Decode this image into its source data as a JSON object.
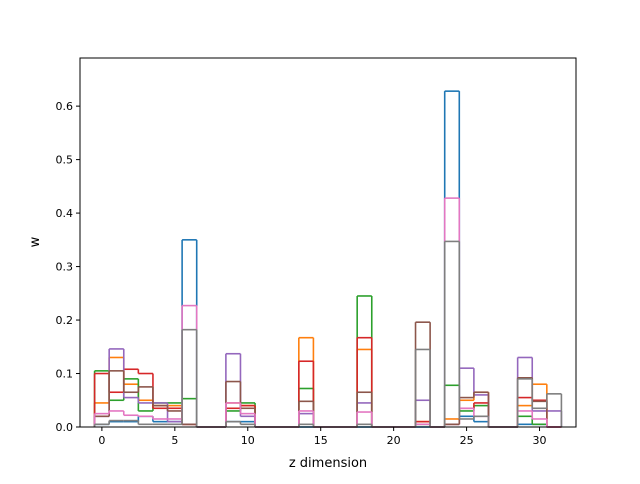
{
  "chart_data": {
    "type": "bar",
    "style": "step-histogram",
    "title": "",
    "xlabel": "z dimension",
    "ylabel": "w",
    "xlim": [
      -1.5,
      32.5
    ],
    "ylim": [
      0,
      0.69
    ],
    "xticks": [
      0,
      5,
      10,
      15,
      20,
      25,
      30
    ],
    "yticks": [
      0.0,
      0.1,
      0.2,
      0.3,
      0.4,
      0.5,
      0.6
    ],
    "xtick_labels": [
      "0",
      "5",
      "10",
      "15",
      "20",
      "25",
      "30"
    ],
    "ytick_labels": [
      "0.0",
      "0.1",
      "0.2",
      "0.3",
      "0.4",
      "0.5",
      "0.6"
    ],
    "grid": false,
    "legend": "none",
    "x": [
      0,
      1,
      2,
      3,
      4,
      5,
      6,
      7,
      8,
      9,
      10,
      11,
      12,
      13,
      14,
      15,
      16,
      17,
      18,
      19,
      20,
      21,
      22,
      23,
      24,
      25,
      26,
      27,
      28,
      29,
      30,
      31
    ],
    "series": [
      {
        "color": "#1f77b4",
        "values": [
          0.005,
          0.01,
          0.01,
          0.02,
          0.01,
          0.01,
          0.35,
          0,
          0,
          0.01,
          0.01,
          0,
          0,
          0,
          0,
          0,
          0,
          0,
          0,
          0,
          0,
          0,
          0,
          0,
          0.628,
          0.02,
          0.01,
          0,
          0,
          0.005,
          0.005,
          0
        ]
      },
      {
        "color": "#ff7f0e",
        "values": [
          0.045,
          0.13,
          0.08,
          0.05,
          0.04,
          0.04,
          0.005,
          0,
          0,
          0.045,
          0.04,
          0,
          0,
          0,
          0.167,
          0,
          0,
          0,
          0.145,
          0,
          0,
          0,
          0.01,
          0,
          0.015,
          0.05,
          0.065,
          0,
          0,
          0.04,
          0.08,
          0
        ]
      },
      {
        "color": "#2ca02c",
        "values": [
          0.105,
          0.05,
          0.09,
          0.03,
          0.045,
          0.045,
          0.053,
          0,
          0,
          0.03,
          0.045,
          0,
          0,
          0,
          0.072,
          0,
          0,
          0,
          0.245,
          0,
          0,
          0,
          0.005,
          0,
          0.078,
          0.03,
          0.04,
          0,
          0,
          0.02,
          0.005,
          0
        ]
      },
      {
        "color": "#d62728",
        "values": [
          0.1,
          0.065,
          0.108,
          0.1,
          0.035,
          0.035,
          0.005,
          0,
          0,
          0.035,
          0.04,
          0,
          0,
          0,
          0.123,
          0,
          0,
          0,
          0.167,
          0,
          0,
          0,
          0.01,
          0,
          0.005,
          0.035,
          0.045,
          0,
          0,
          0.055,
          0.05,
          0
        ]
      },
      {
        "color": "#9467bd",
        "values": [
          0.02,
          0.146,
          0.055,
          0.045,
          0.045,
          0.01,
          0.005,
          0,
          0,
          0.137,
          0.02,
          0,
          0,
          0,
          0.025,
          0,
          0,
          0,
          0.045,
          0,
          0,
          0,
          0.05,
          0,
          0.005,
          0.11,
          0.06,
          0,
          0,
          0.13,
          0.03,
          0.03
        ]
      },
      {
        "color": "#8c564b",
        "values": [
          0.02,
          0.105,
          0.065,
          0.075,
          0.04,
          0.03,
          0.005,
          0,
          0,
          0.085,
          0.035,
          0,
          0,
          0,
          0.048,
          0,
          0,
          0,
          0.065,
          0,
          0,
          0,
          0.196,
          0,
          0.005,
          0.055,
          0.065,
          0,
          0,
          0.092,
          0.048,
          0
        ]
      },
      {
        "color": "#e377c2",
        "values": [
          0.025,
          0.03,
          0.022,
          0.02,
          0.015,
          0.015,
          0.227,
          0,
          0,
          0.045,
          0.025,
          0,
          0,
          0,
          0.03,
          0,
          0,
          0,
          0.028,
          0,
          0,
          0,
          0.005,
          0,
          0.428,
          0.035,
          0.02,
          0,
          0,
          0.03,
          0.015,
          0
        ]
      },
      {
        "color": "#7f7f7f",
        "values": [
          0.005,
          0.012,
          0.012,
          0.005,
          0.005,
          0.005,
          0.182,
          0,
          0,
          0.01,
          0.005,
          0,
          0,
          0,
          0.005,
          0,
          0,
          0,
          0.005,
          0,
          0,
          0,
          0.145,
          0,
          0.347,
          0.015,
          0.02,
          0,
          0,
          0.09,
          0.035,
          0.062
        ]
      }
    ]
  }
}
